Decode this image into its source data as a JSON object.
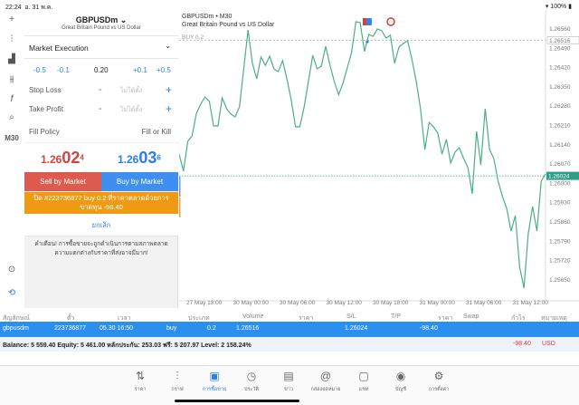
{
  "status": {
    "time": "22:24",
    "date": "อ. 31 พ.ค.",
    "battery": "100%"
  },
  "toolbar": {
    "timeframe": "M30"
  },
  "order": {
    "symbol": "GBPUSDm",
    "description": "Great Britain Pound vs US Dollar",
    "execution": "Market Execution",
    "volume_steps": [
      "-0.5",
      "-0.1",
      "+0.1",
      "+0.5"
    ],
    "volume": "0.20",
    "stop_loss_label": "Stop Loss",
    "take_profit_label": "Take Profit",
    "not_set": "ไม่ได้ตั้ง",
    "minus": "-",
    "plus": "+",
    "fill_policy_label": "Fill Policy",
    "fill_policy": "Fill or Kill",
    "bid_main": "1.26",
    "bid_big": "02",
    "bid_sup": "4",
    "ask_main": "1.26",
    "ask_big": "03",
    "ask_sup": "6",
    "sell_label": "Sell by Market",
    "buy_label": "Buy by Market",
    "close_label": "ปิด #223736877 buy 0.2 ที่ราคาตลาดด้วยการขาดทุน -98.40",
    "cancel_label": "ยกเลิก",
    "warning": "คำเตือน! การซื้อขายจะถูกดำเนินการตามสภาพตลาด ความแตกต่างกับราคาที่ส่งอาจมีมาก!"
  },
  "chart_data": {
    "type": "line",
    "title": "GBPUSDm • M30",
    "subtitle": "Great Britain Pound vs US Dollar",
    "order_line_label": "BUY 0.2",
    "order_price": 1.26516,
    "current_price": 1.26024,
    "current_price_label": "1.26024",
    "order_price_label": "1.26516",
    "color": "#4caf82",
    "ylim": [
      1.2562,
      1.2661
    ],
    "yticks": [
      "1.26560",
      "1.26490",
      "1.26420",
      "1.26350",
      "1.26280",
      "1.26210",
      "1.26140",
      "1.26070",
      "1.26000",
      "1.25930",
      "1.25860",
      "1.25790",
      "1.25720",
      "1.25650"
    ],
    "xticks": [
      "27 May 18:00",
      "30 May 00:00",
      "30 May 06:00",
      "30 May 12:00",
      "30 May 18:00",
      "31 May 00:00",
      "31 May 06:00",
      "31 May 12:00"
    ],
    "values": [
      1.26103,
      1.26041,
      1.26149,
      1.26169,
      1.26251,
      1.26284,
      1.2631,
      1.26294,
      1.26205,
      1.26205,
      1.26307,
      1.26268,
      1.26248,
      1.26238,
      1.26274,
      1.26415,
      1.26553,
      1.26432,
      1.26376,
      1.26455,
      1.26425,
      1.26458,
      1.26412,
      1.26402,
      1.26442,
      1.26376,
      1.263,
      1.26202,
      1.26202,
      1.26274,
      1.26366,
      1.26461,
      1.26412,
      1.26422,
      1.26494,
      1.26425,
      1.26366,
      1.26318,
      1.2636,
      1.26415,
      1.26471,
      1.26583,
      1.2658,
      1.26475,
      1.26537,
      1.2653,
      1.26557,
      1.2655,
      1.26524,
      1.26534,
      1.26432,
      1.26491,
      1.26504,
      1.26514,
      1.26448,
      1.26366,
      1.26268,
      1.2612,
      1.26218,
      1.26202,
      1.26179,
      1.26103,
      1.26156,
      1.2607,
      1.2611,
      1.26126,
      1.26087,
      1.26054,
      1.25959,
      1.26185,
      1.26064,
      1.26268,
      1.2612,
      1.26087,
      1.26005,
      1.25949,
      1.25906,
      1.25824,
      1.2588,
      1.25693,
      1.25617,
      1.25814,
      1.25913,
      1.25824,
      1.26005,
      1.26031
    ]
  },
  "table": {
    "headers": [
      "สัญลักษณ์",
      "ตั๋ว",
      "เวลา",
      "ประเภท",
      "Volume",
      "ราคา",
      "S/L",
      "T/P",
      "ราคา",
      "Swap",
      "กำไร",
      "หมายเหตุ"
    ],
    "row": {
      "symbol": "gbpusdm",
      "ticket": "223736877",
      "time": "05.30 16:50",
      "type": "buy",
      "volume": "0.2",
      "open": "1.26516",
      "current": "1.26024",
      "profit": "-98.40"
    },
    "balance": "Balance: 5 559.40 Equity: 5 461.00 หลักประกัน: 253.03 ฟรี: 5 207.97 Level: 2 158.24%",
    "total": "-98.40",
    "currency": "USD"
  },
  "tabs": [
    {
      "label": "ราคา",
      "icon": "⇅"
    },
    {
      "label": "กราฟ",
      "icon": "⫶"
    },
    {
      "label": "การซื้อขาย",
      "icon": "📈"
    },
    {
      "label": "ประวัติ",
      "icon": "◷"
    },
    {
      "label": "ข่าว",
      "icon": "▤"
    },
    {
      "label": "กล่องจดหมาย",
      "icon": "@"
    },
    {
      "label": "แชท",
      "icon": "▢"
    },
    {
      "label": "บัญชี",
      "icon": "◉"
    },
    {
      "label": "การตั้งค่า",
      "icon": "⚙"
    }
  ]
}
